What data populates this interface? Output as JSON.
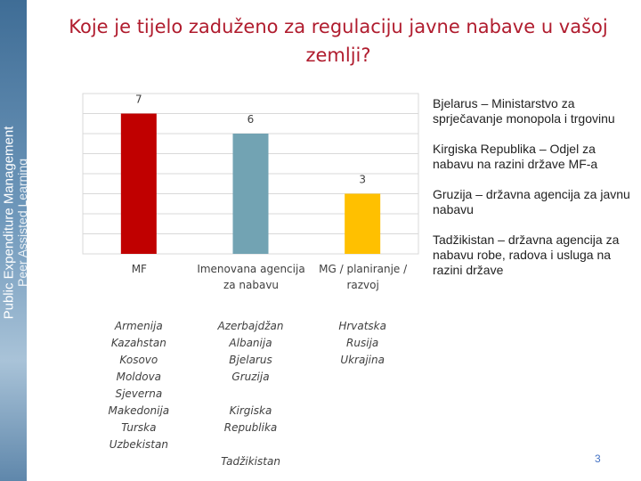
{
  "chart_data": {
    "type": "bar",
    "title": "Koje je tijelo zaduženo za regulaciju javne nabave u vašoj zemlji?",
    "categories": [
      "MF",
      "Imenovana agencija za nabavu",
      "MG / planiranje / razvoj"
    ],
    "values": [
      7,
      6,
      3
    ],
    "colors": [
      "#c00000",
      "#72a3b3",
      "#ffc000"
    ],
    "ylim": [
      0,
      8
    ],
    "yticks": [
      0,
      1,
      2,
      3,
      4,
      5,
      6,
      7,
      8
    ],
    "grid": true
  },
  "sidebar": [
    "Public Expenditure Management",
    "Peer Assisted Learning"
  ],
  "country_groups": [
    [
      "Armenija",
      "Kazahstan",
      "Kosovo",
      "Moldova",
      "Sjeverna Makedonija",
      "Turska",
      "Uzbekistan"
    ],
    [
      "Azerbajdžan",
      "Albanija",
      "Bjelarus",
      "Gruzija",
      "Kirgiska Republika",
      "Tadžikistan"
    ],
    [
      "Hrvatska",
      "Rusija",
      "Ukrajina"
    ]
  ],
  "notes": [
    {
      "bold": "Bjelarus",
      "text": "– Ministarstvo za sprječavanje monopola i trgovinu"
    },
    {
      "bold": "Kirgiska Republika",
      "text": "– Odjel za nabavu na razini države MF-a"
    },
    {
      "bold": "Gruzija",
      "text": "– državna agencija za javnu nabavu"
    },
    {
      "bold": "Tadžikistan",
      "text": "– državna agencija za nabavu robe, radova i usluga na razini države"
    }
  ],
  "page_number": "3"
}
